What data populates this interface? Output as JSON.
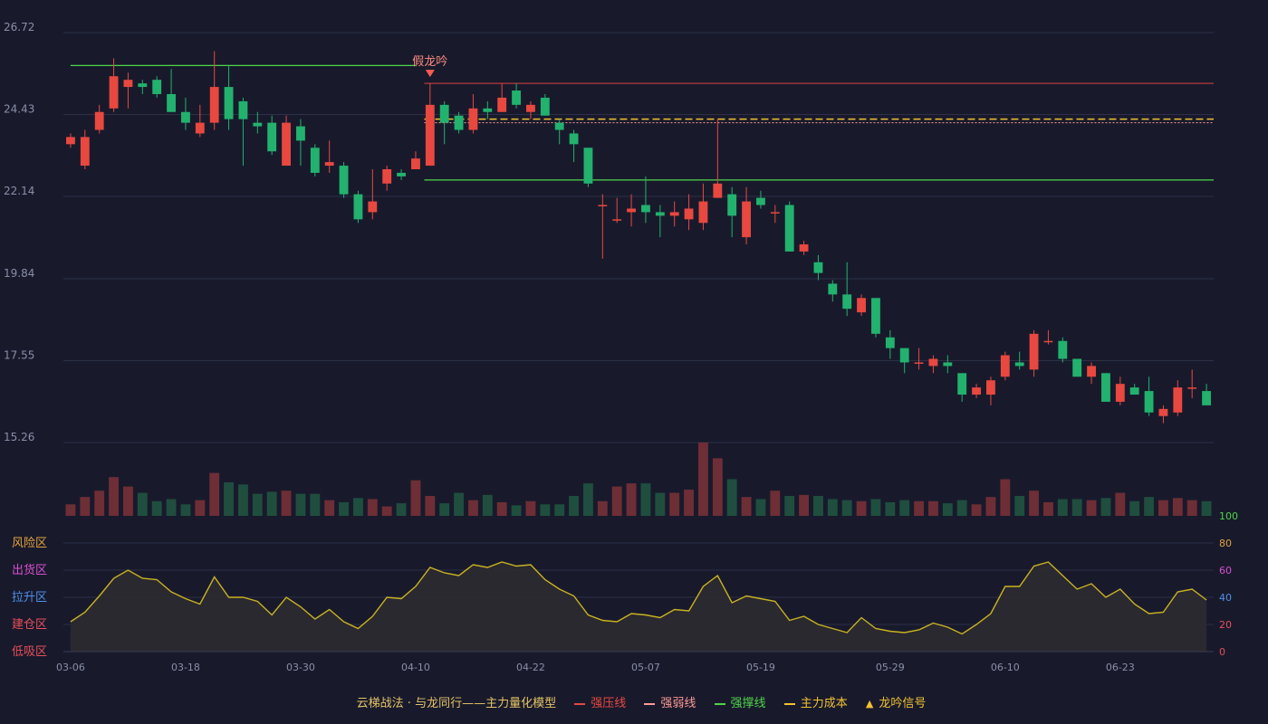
{
  "chart_data": [
    {
      "type": "candlestick",
      "title": "",
      "ylim": [
        14.1,
        27.8
      ],
      "y_ticks": [
        "26.72",
        "24.43",
        "22.14",
        "19.84",
        "17.55",
        "15.26"
      ],
      "x_ticks": [
        "03-06",
        "03-18",
        "03-30",
        "04-10",
        "04-22",
        "05-07",
        "05-19",
        "05-29",
        "06-10",
        "06-23"
      ],
      "x_tick_index": [
        0,
        8,
        16,
        24,
        32,
        40,
        48,
        57,
        65,
        73
      ],
      "ohlc": [
        [
          23.6,
          23.8,
          23.9,
          23.5
        ],
        [
          23.0,
          23.8,
          24.0,
          22.9
        ],
        [
          24.0,
          24.5,
          24.7,
          23.9
        ],
        [
          24.6,
          25.5,
          26.0,
          24.5
        ],
        [
          25.2,
          25.4,
          25.6,
          24.6
        ],
        [
          25.3,
          25.2,
          25.4,
          25.0
        ],
        [
          25.4,
          25.0,
          25.5,
          24.9
        ],
        [
          25.0,
          24.5,
          25.7,
          24.5
        ],
        [
          24.5,
          24.2,
          24.9,
          24.0
        ],
        [
          23.9,
          24.2,
          24.7,
          23.8
        ],
        [
          24.2,
          25.2,
          26.2,
          24.0
        ],
        [
          25.2,
          24.3,
          25.8,
          24.0
        ],
        [
          24.8,
          24.3,
          24.9,
          23.0
        ],
        [
          24.2,
          24.1,
          24.5,
          23.9
        ],
        [
          24.2,
          23.4,
          24.4,
          23.3
        ],
        [
          23.0,
          24.2,
          24.4,
          23.0
        ],
        [
          24.1,
          23.7,
          24.3,
          23.0
        ],
        [
          23.5,
          22.8,
          23.6,
          22.7
        ],
        [
          23.0,
          23.1,
          23.7,
          22.8
        ],
        [
          23.0,
          22.2,
          23.1,
          22.1
        ],
        [
          22.2,
          21.5,
          22.3,
          21.4
        ],
        [
          21.7,
          22.0,
          22.9,
          21.5
        ],
        [
          22.5,
          22.9,
          23.0,
          22.3
        ],
        [
          22.8,
          22.7,
          22.9,
          22.6
        ],
        [
          22.9,
          23.2,
          23.4,
          22.9
        ],
        [
          23.0,
          24.7,
          25.3,
          23.0
        ],
        [
          24.7,
          24.2,
          24.8,
          23.6
        ],
        [
          24.4,
          24.0,
          24.5,
          23.9
        ],
        [
          24.0,
          24.6,
          25.0,
          23.9
        ],
        [
          24.6,
          24.5,
          24.8,
          24.3
        ],
        [
          24.5,
          24.9,
          25.3,
          24.5
        ],
        [
          25.1,
          24.7,
          25.3,
          24.6
        ],
        [
          24.5,
          24.7,
          24.8,
          24.3
        ],
        [
          24.9,
          24.4,
          25.0,
          24.4
        ],
        [
          24.2,
          24.0,
          24.3,
          23.6
        ],
        [
          23.9,
          23.6,
          24.0,
          23.1
        ],
        [
          23.5,
          22.5,
          23.5,
          22.4
        ],
        [
          21.9,
          21.9,
          22.2,
          20.4
        ],
        [
          21.5,
          21.5,
          22.1,
          21.4
        ],
        [
          21.7,
          21.8,
          22.2,
          21.3
        ],
        [
          21.9,
          21.7,
          22.7,
          21.4
        ],
        [
          21.7,
          21.6,
          21.9,
          21.0
        ],
        [
          21.6,
          21.7,
          22.0,
          21.3
        ],
        [
          21.5,
          21.8,
          22.2,
          21.2
        ],
        [
          21.4,
          22.0,
          22.5,
          21.2
        ],
        [
          22.1,
          22.5,
          24.3,
          22.1
        ],
        [
          22.2,
          21.6,
          22.4,
          21.0
        ],
        [
          21.0,
          22.0,
          22.4,
          20.8
        ],
        [
          22.1,
          21.9,
          22.3,
          21.8
        ],
        [
          21.7,
          21.7,
          21.9,
          21.4
        ],
        [
          21.9,
          20.6,
          22.0,
          20.6
        ],
        [
          20.6,
          20.8,
          20.9,
          20.5
        ],
        [
          20.3,
          20.0,
          20.5,
          19.8
        ],
        [
          19.7,
          19.4,
          19.8,
          19.2
        ],
        [
          19.4,
          19.0,
          20.3,
          18.8
        ],
        [
          18.9,
          19.3,
          19.4,
          18.8
        ],
        [
          19.3,
          18.3,
          19.3,
          18.2
        ],
        [
          18.2,
          17.9,
          18.4,
          17.6
        ],
        [
          17.9,
          17.5,
          17.9,
          17.2
        ],
        [
          17.5,
          17.5,
          17.9,
          17.3
        ],
        [
          17.4,
          17.6,
          17.7,
          17.2
        ],
        [
          17.5,
          17.4,
          17.7,
          17.2
        ],
        [
          17.2,
          16.6,
          17.2,
          16.4
        ],
        [
          16.6,
          16.8,
          16.9,
          16.5
        ],
        [
          16.6,
          17.0,
          17.1,
          16.3
        ],
        [
          17.1,
          17.7,
          17.8,
          17.0
        ],
        [
          17.5,
          17.4,
          17.8,
          17.3
        ],
        [
          17.3,
          18.3,
          18.4,
          17.1
        ],
        [
          18.1,
          18.1,
          18.4,
          18.0
        ],
        [
          18.1,
          17.6,
          18.2,
          17.5
        ],
        [
          17.6,
          17.1,
          17.6,
          17.1
        ],
        [
          17.1,
          17.4,
          17.5,
          16.9
        ],
        [
          17.2,
          16.4,
          17.2,
          16.4
        ],
        [
          16.4,
          16.9,
          17.1,
          16.3
        ],
        [
          16.8,
          16.6,
          16.9,
          16.6
        ],
        [
          16.7,
          16.1,
          17.1,
          16.0
        ],
        [
          16.0,
          16.2,
          16.3,
          15.8
        ],
        [
          16.1,
          16.8,
          17.0,
          16.0
        ],
        [
          16.8,
          16.8,
          17.3,
          16.5
        ],
        [
          16.7,
          16.3,
          16.9,
          16.3
        ]
      ],
      "volume": [
        11,
        18,
        24,
        37,
        28,
        22,
        14,
        16,
        11,
        15,
        41,
        32,
        30,
        21,
        23,
        24,
        21,
        21,
        15,
        13,
        17,
        16,
        9,
        12,
        34,
        19,
        12,
        22,
        15,
        20,
        13,
        10,
        14,
        11,
        11,
        19,
        31,
        14,
        28,
        31,
        31,
        22,
        22,
        25,
        70,
        55,
        35,
        18,
        16,
        24,
        19,
        20,
        19,
        16,
        15,
        14,
        16,
        13,
        15,
        14,
        14,
        12,
        15,
        11,
        18,
        35,
        19,
        24,
        13,
        16,
        16,
        15,
        17,
        22,
        14,
        18,
        15,
        17,
        15,
        14
      ],
      "indicator_ylim": [
        0,
        100
      ],
      "indicator_ticks": [
        "0",
        "20",
        "40",
        "60",
        "80",
        "100"
      ],
      "indicator": [
        22,
        29,
        41,
        54,
        60,
        54,
        53,
        44,
        39,
        35,
        55,
        40,
        40,
        37,
        27,
        40,
        33,
        24,
        31,
        22,
        17,
        26,
        40,
        39,
        48,
        62,
        58,
        56,
        64,
        62,
        66,
        63,
        64,
        53,
        46,
        41,
        27,
        23,
        22,
        28,
        27,
        25,
        31,
        30,
        48,
        56,
        36,
        41,
        39,
        37,
        23,
        26,
        20,
        17,
        14,
        25,
        17,
        15,
        14,
        16,
        21,
        18,
        13,
        20,
        28,
        48,
        48,
        63,
        66,
        56,
        46,
        50,
        40,
        46,
        35,
        28,
        29,
        44,
        46,
        38
      ],
      "zones": [
        "风险区",
        "出货区",
        "拉升区",
        "建仓区",
        "低吸区"
      ],
      "levels": {
        "pressure": 25.3,
        "weak": 24.2,
        "cost": 24.3,
        "support": 22.6,
        "early_support": 25.8
      },
      "annotation": {
        "label": "假龙吟",
        "index": 25
      },
      "legend": {
        "model": "云梯战法 · 与龙同行——主力量化模型",
        "items": [
          {
            "label": "强压线",
            "color": "#e8483f",
            "style": "solid"
          },
          {
            "label": "强弱线",
            "color": "#ff9a94",
            "style": "dashed"
          },
          {
            "label": "强撑线",
            "color": "#4fd44a",
            "style": "solid"
          },
          {
            "label": "主力成本",
            "color": "#f2c230",
            "style": "dashed"
          },
          {
            "label": "龙吟信号",
            "color": "#f2c230",
            "style": "triangle"
          }
        ]
      },
      "colors": {
        "up": "#e8483f",
        "down": "#22b26e",
        "volume_up": "#6e2e35",
        "volume_down": "#1f4e3e",
        "indicator_line": "#c9b220",
        "indicator_fill": "#2c2b30",
        "zone_risk": "#e3a23a",
        "zone_ship": "#d84fd0",
        "zone_pull": "#4f8fe8",
        "zone_build": "#e84f5a",
        "zone_low": "#e84f5a"
      }
    }
  ]
}
